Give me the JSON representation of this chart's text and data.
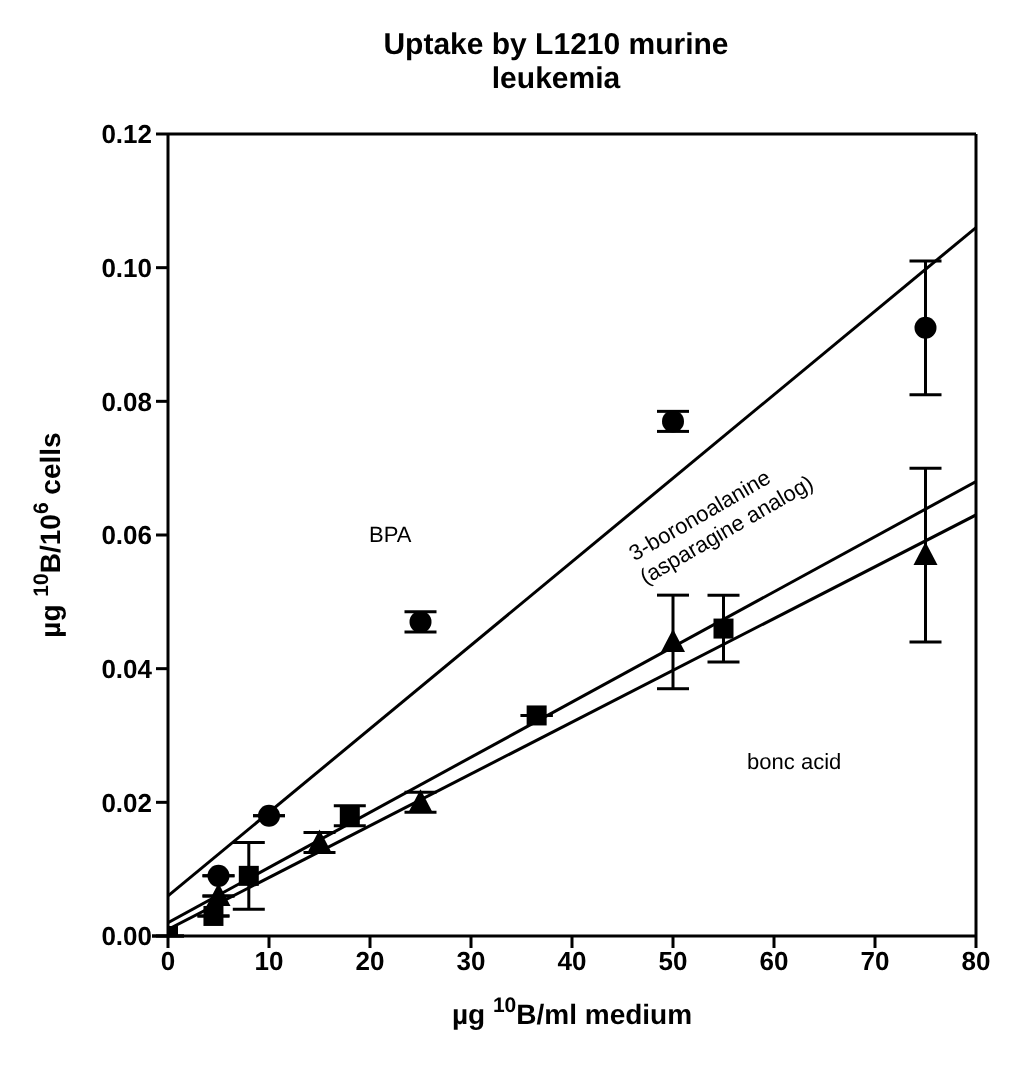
{
  "chart_data": {
    "type": "scatter",
    "title": "Uptake by L1210 murine leukemia",
    "xlabel": "µg $^{10}$B/ml medium",
    "ylabel": "µg $^{10}$B/10$^{6}$ cells",
    "xlim": [
      0,
      80
    ],
    "xticks": [
      0,
      10,
      20,
      30,
      40,
      50,
      60,
      70,
      80
    ],
    "ylim": [
      0,
      0.12
    ],
    "yticks": [
      {
        "value": 0,
        "label": "0.00"
      },
      {
        "value": 0.02,
        "label": "0.02"
      },
      {
        "value": 0.04,
        "label": "0.04"
      },
      {
        "value": 0.06,
        "label": "0.06"
      },
      {
        "value": 0.08,
        "label": "0.08"
      },
      {
        "value": 0.1,
        "label": "0.10"
      },
      {
        "value": 0.12,
        "label": "0.12"
      }
    ],
    "series": [
      {
        "marker": "circle",
        "color": "#000000",
        "x": [
          5,
          10,
          25,
          50,
          75
        ],
        "values": [
          0.009,
          0.018,
          0.047,
          0.077,
          0.091
        ],
        "errors": [
          null,
          null,
          0.0015,
          0.0015,
          [
            0.081,
            0.101
          ]
        ]
      },
      {
        "marker": "square",
        "color": "#000000",
        "x": [
          0,
          4.5,
          8,
          18,
          36.5,
          55
        ],
        "values": [
          0,
          0.003,
          0.009,
          0.018,
          0.033,
          0.046
        ],
        "errors": [
          null,
          null,
          [
            0.004,
            0.014
          ],
          0.0015,
          null,
          [
            0.041,
            0.051
          ]
        ]
      },
      {
        "marker": "triangle",
        "color": "#000000",
        "x": [
          5,
          15,
          25,
          50,
          75
        ],
        "values": [
          0.006,
          0.014,
          0.02,
          0.044,
          0.057
        ],
        "errors": [
          null,
          0.0015,
          0.0015,
          [
            0.037,
            0.051
          ],
          [
            0.044,
            0.07
          ]
        ]
      },
      {
        "type": "line",
        "marker": "none",
        "color": "#000000",
        "x": [
          0,
          80
        ],
        "values": [
          0.006,
          0.106
        ]
      },
      {
        "type": "line",
        "marker": "none",
        "color": "#000000",
        "x": [
          0,
          80
        ],
        "values": [
          0.002,
          0.068
        ]
      },
      {
        "type": "line",
        "marker": "none",
        "color": "#000000",
        "x": [
          0,
          80
        ],
        "values": [
          0.001,
          0.063
        ]
      }
    ],
    "annotations": [
      "BPA",
      "3-boronoalanine (asparagine analog)",
      "bonc acid"
    ]
  }
}
